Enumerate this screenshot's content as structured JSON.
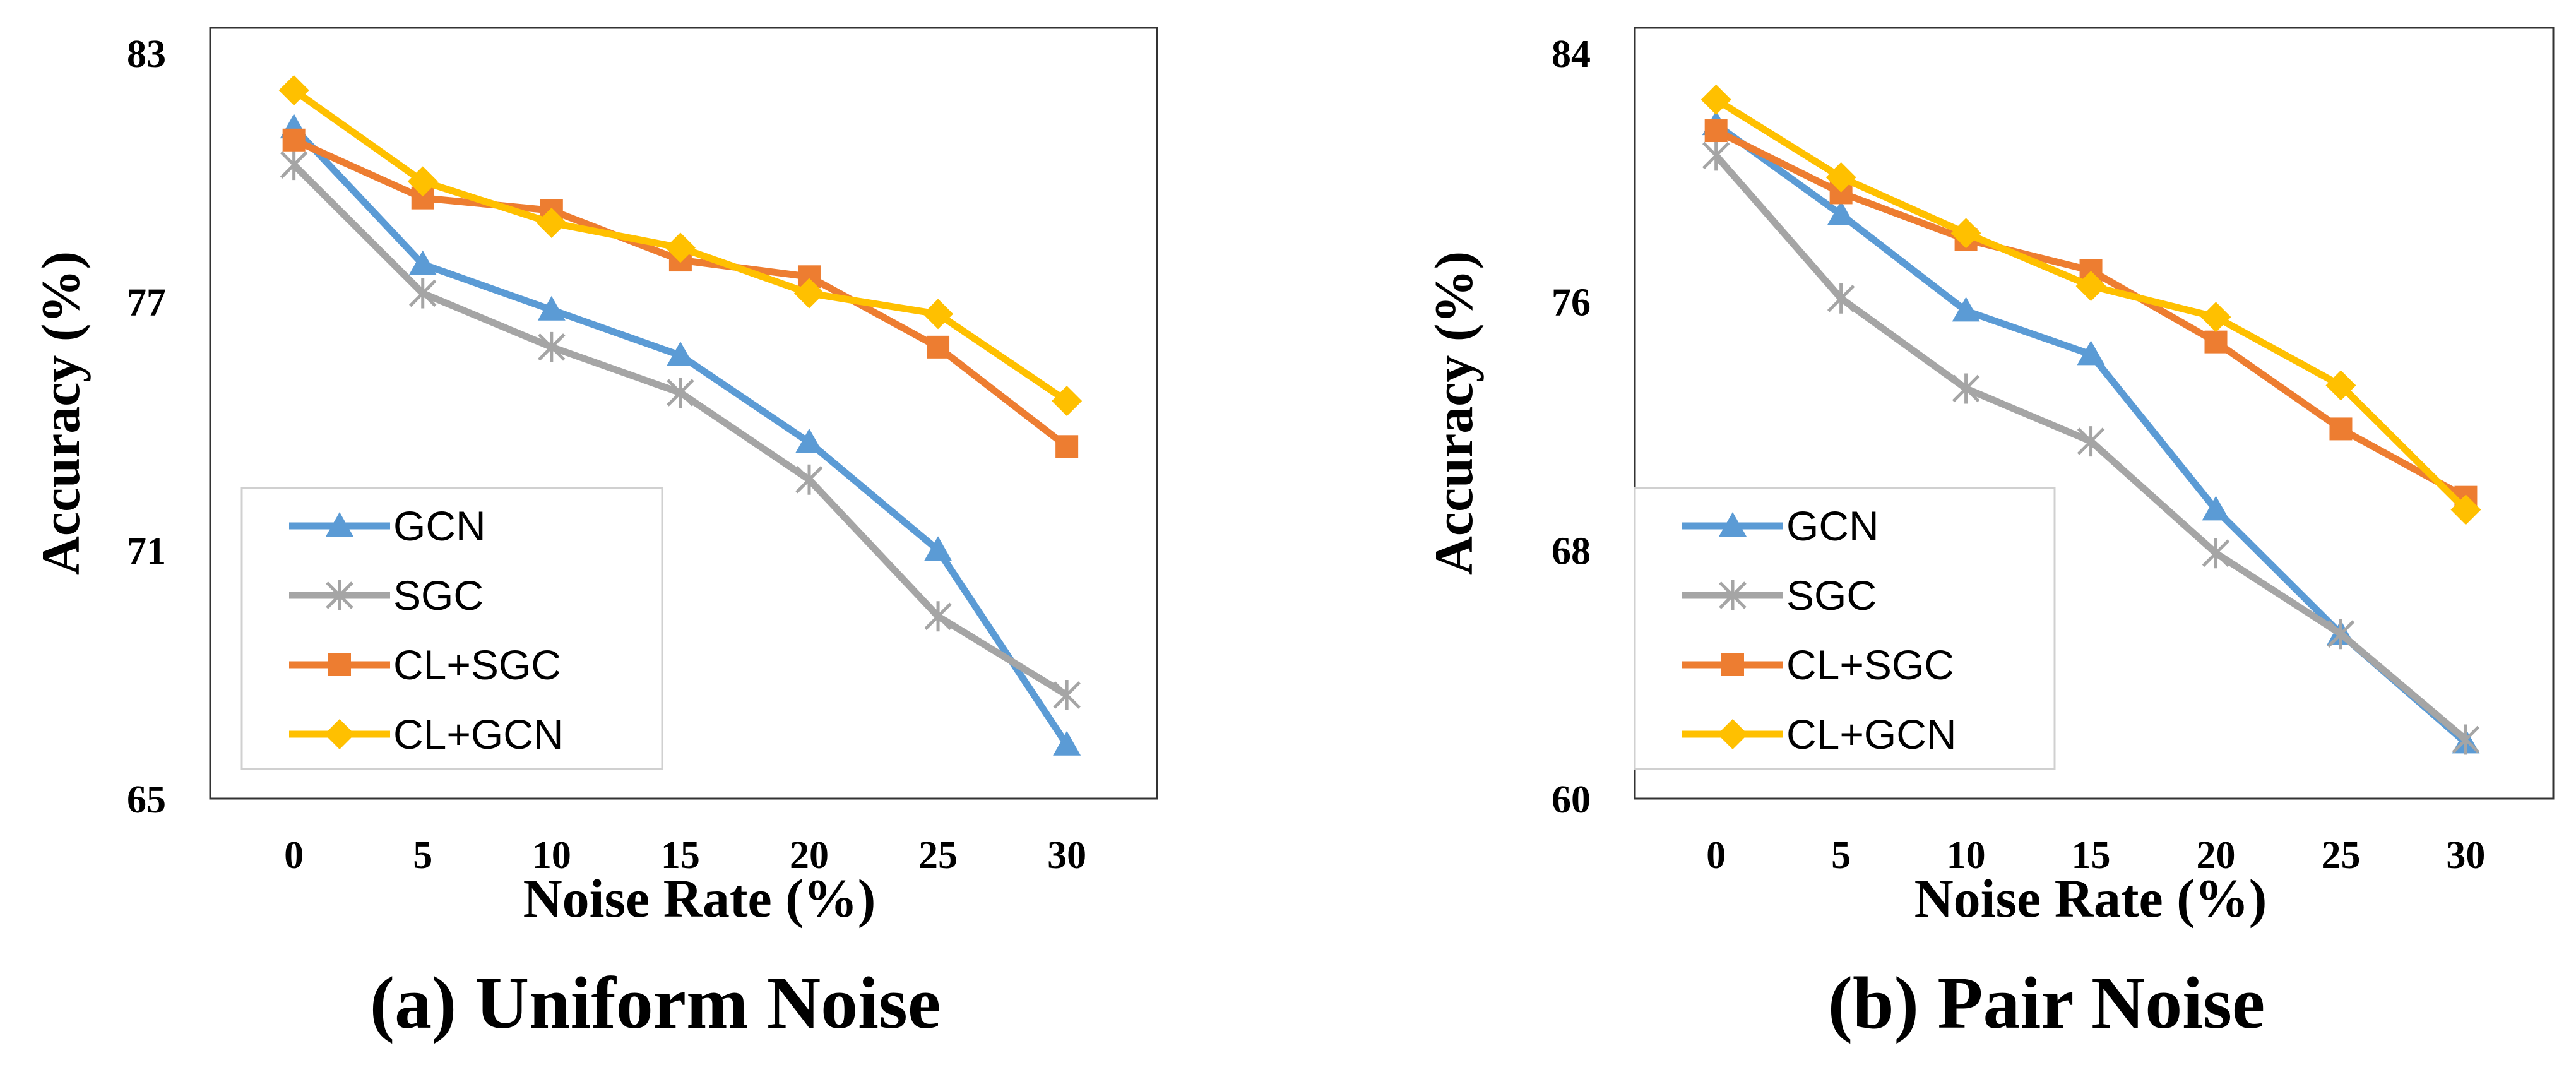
{
  "colors": {
    "GCN": "#5B9BD5",
    "SGC": "#A5A5A5",
    "CL+SGC": "#ED7D31",
    "CL+GCN": "#FFC000"
  },
  "markers": {
    "GCN": "triangle",
    "SGC": "star",
    "CL+SGC": "square",
    "CL+GCN": "diamond"
  },
  "chart_data": [
    {
      "type": "line",
      "caption": "(a) Uniform Noise",
      "xlabel": "Noise Rate (%)",
      "ylabel": "Accuracy (%)",
      "x": [
        0,
        5,
        10,
        15,
        20,
        25,
        30
      ],
      "ylim": [
        65,
        83
      ],
      "yticks": [
        65,
        71,
        77,
        83
      ],
      "grid": false,
      "legend_position": "lower-left",
      "series": [
        {
          "name": "GCN",
          "values": [
            81.2,
            77.9,
            76.8,
            75.7,
            73.6,
            71.0,
            66.3
          ]
        },
        {
          "name": "SGC",
          "values": [
            80.3,
            77.2,
            75.9,
            74.8,
            72.7,
            69.4,
            67.5
          ]
        },
        {
          "name": "CL+SGC",
          "values": [
            80.9,
            79.5,
            79.2,
            78.0,
            77.6,
            75.9,
            73.5
          ]
        },
        {
          "name": "CL+GCN",
          "values": [
            82.1,
            79.9,
            78.9,
            78.3,
            77.2,
            76.7,
            74.6
          ]
        }
      ]
    },
    {
      "type": "line",
      "caption": "(b) Pair Noise",
      "xlabel": "Noise Rate (%)",
      "ylabel": "Accuracy (%)",
      "x": [
        0,
        5,
        10,
        15,
        20,
        25,
        30
      ],
      "ylim": [
        60,
        84
      ],
      "yticks": [
        60,
        68,
        76,
        84
      ],
      "grid": false,
      "legend_position": "lower-left",
      "series": [
        {
          "name": "GCN",
          "values": [
            81.7,
            78.8,
            75.7,
            74.3,
            69.3,
            65.3,
            61.8
          ]
        },
        {
          "name": "SGC",
          "values": [
            80.7,
            76.1,
            73.2,
            71.5,
            67.9,
            65.3,
            61.9
          ]
        },
        {
          "name": "CL+SGC",
          "values": [
            81.5,
            79.5,
            78.0,
            77.0,
            74.7,
            71.9,
            69.7
          ]
        },
        {
          "name": "CL+GCN",
          "values": [
            82.5,
            80.0,
            78.2,
            76.5,
            75.5,
            73.3,
            69.3
          ]
        }
      ]
    }
  ]
}
